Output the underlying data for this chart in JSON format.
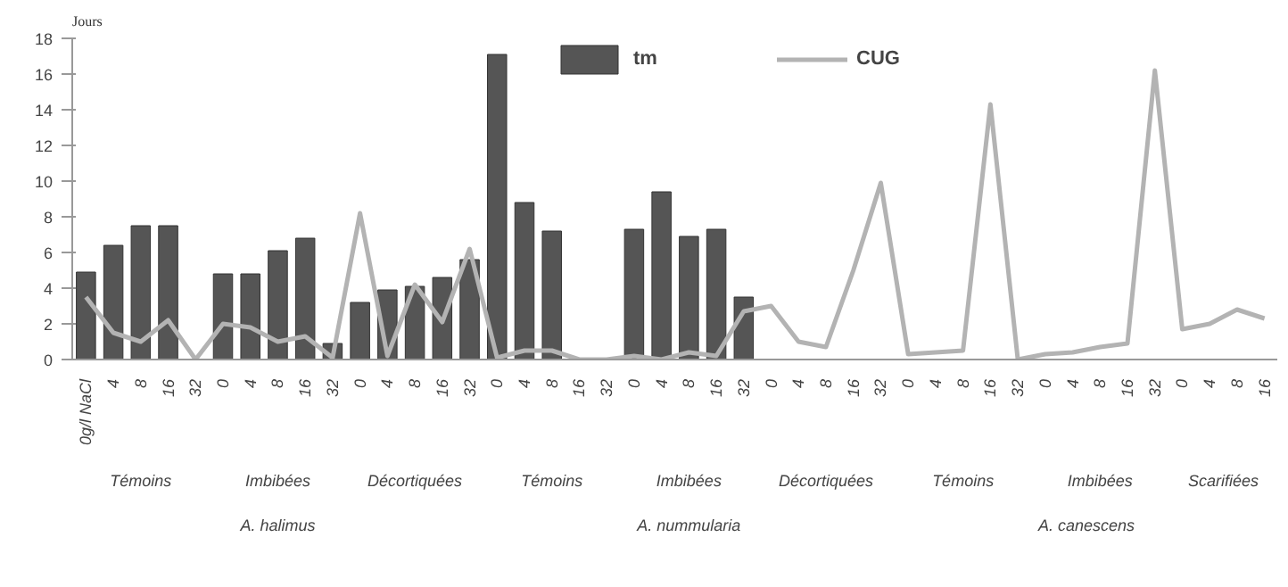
{
  "chart_data": {
    "type": "bar",
    "ylabel": "Jours",
    "categories": [
      "0g/l NaCl",
      "4",
      "8",
      "16",
      "32",
      "0",
      "4",
      "8",
      "16",
      "32",
      "0",
      "4",
      "8",
      "16",
      "32",
      "0",
      "4",
      "8",
      "16",
      "32",
      "0",
      "4",
      "8",
      "16",
      "32",
      "0",
      "4",
      "8",
      "16",
      "32",
      "0",
      "4",
      "8",
      "16",
      "32",
      "0",
      "4",
      "8",
      "16",
      "32",
      "0",
      "4",
      "8",
      "16"
    ],
    "series": [
      {
        "name": "tm",
        "color": "#555555",
        "values": [
          4.9,
          6.4,
          7.5,
          7.5,
          null,
          4.8,
          4.8,
          6.1,
          6.8,
          0.9,
          3.2,
          3.9,
          4.1,
          4.6,
          5.6,
          17.1,
          8.8,
          7.2,
          null,
          null,
          7.3,
          9.4,
          6.9,
          7.3,
          3.5,
          null,
          null,
          null,
          null,
          null,
          null,
          null,
          null,
          null,
          null,
          null,
          null,
          null,
          null,
          null,
          null,
          null,
          null,
          null
        ]
      },
      {
        "name": "CUG",
        "type": "line",
        "color": "#b3b3b3",
        "values": [
          3.5,
          1.5,
          1.0,
          2.2,
          0,
          2.0,
          1.8,
          1.0,
          1.3,
          0.1,
          8.2,
          0.2,
          4.2,
          2.1,
          6.2,
          0.1,
          0.5,
          0.5,
          0,
          0,
          0.2,
          0,
          0.4,
          0.2,
          2.7,
          3.0,
          1.0,
          0.7,
          5.0,
          9.9,
          0.3,
          0.4,
          0.5,
          14.3,
          0,
          0.3,
          0.4,
          0.7,
          0.9,
          16.2,
          1.7,
          2.0,
          2.8,
          2.3
        ]
      }
    ],
    "annotations": [
      "Témoins",
      "Imbibées",
      "Décortiquées",
      "Témoins",
      "Imbibées",
      "Décortiquées",
      "Témoins",
      "Imbibées",
      "Scarifiées",
      "A. halimus",
      "A. nummularia",
      "A. canescens"
    ],
    "ylim": [
      0,
      18
    ],
    "yticks": [
      0,
      2,
      4,
      6,
      8,
      10,
      12,
      14,
      16,
      18
    ],
    "grid": false,
    "legend": "top"
  }
}
